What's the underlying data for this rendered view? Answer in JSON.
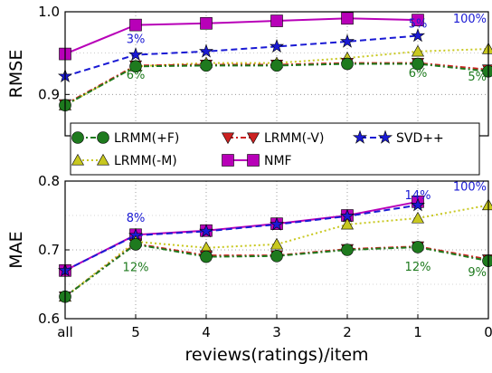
{
  "chart_data": {
    "type": "line",
    "xlabel": "reviews(ratings)/item",
    "categories": [
      "all",
      "5",
      "4",
      "3",
      "2",
      "1",
      "0"
    ],
    "grid": true,
    "legend_placement": "between panels",
    "legend_columns": [
      [
        "LRMM(+F)",
        "LRMM(-M)"
      ],
      [
        "LRMM(-V)",
        "NMF"
      ],
      [
        "SVD++"
      ]
    ],
    "series_styles": {
      "LRMM(+F)": {
        "color": "#1e7a1e",
        "marker": "circle",
        "dash": "6,3,2,3"
      },
      "LRMM(-M)": {
        "color": "#c8c820",
        "marker": "triangle-up",
        "dash": "2,3"
      },
      "LRMM(-V)": {
        "color": "#cc2222",
        "marker": "triangle-down",
        "dash": "6,3,2,3"
      },
      "NMF": {
        "color": "#b800b8",
        "marker": "square",
        "dash": ""
      },
      "SVD++": {
        "color": "#1a1ad4",
        "marker": "star",
        "dash": "7,4"
      }
    },
    "panels": [
      {
        "id": "rmse",
        "ylabel": "RMSE",
        "ylim": [
          0.85,
          1.0
        ],
        "yticks": [
          "0.9",
          "1.0"
        ],
        "ytick_values": [
          0.9,
          1.0
        ],
        "series": [
          {
            "name": "NMF",
            "values": [
              0.949,
              0.984,
              0.986,
              0.989,
              0.992,
              0.99,
              null
            ]
          },
          {
            "name": "SVD++",
            "values": [
              0.922,
              0.948,
              0.952,
              0.958,
              0.964,
              0.971,
              null
            ]
          },
          {
            "name": "LRMM(-M)",
            "values": [
              0.887,
              0.934,
              0.938,
              0.938,
              0.944,
              0.952,
              0.955
            ]
          },
          {
            "name": "LRMM(-V)",
            "values": [
              0.888,
              0.935,
              0.936,
              0.936,
              0.938,
              0.938,
              0.93
            ]
          },
          {
            "name": "LRMM(+F)",
            "values": [
              0.887,
              0.934,
              0.935,
              0.935,
              0.937,
              0.937,
              0.928
            ]
          }
        ],
        "annotations": [
          {
            "text": "3%",
            "x": "5",
            "y": 0.962,
            "color": "#1a1ad4"
          },
          {
            "text": "5%",
            "x": "1",
            "y": 0.981,
            "color": "#1a1ad4"
          },
          {
            "text": "100%",
            "x": "0",
            "y": 0.987,
            "color": "#1a1ad4"
          },
          {
            "text": "6%",
            "x": "5",
            "y": 0.919,
            "color": "#1e7a1e"
          },
          {
            "text": "6%",
            "x": "1",
            "y": 0.921,
            "color": "#1e7a1e"
          },
          {
            "text": "5%",
            "x": "0",
            "y": 0.917,
            "color": "#1e7a1e"
          }
        ]
      },
      {
        "id": "mae",
        "ylabel": "MAE",
        "ylim": [
          0.6,
          0.8
        ],
        "yticks": [
          "0.6",
          "0.7",
          "0.8"
        ],
        "ytick_values": [
          0.6,
          0.7,
          0.8
        ],
        "series": [
          {
            "name": "NMF",
            "values": [
              0.67,
              0.722,
              0.728,
              0.738,
              0.75,
              0.77,
              null
            ]
          },
          {
            "name": "SVD++",
            "values": [
              0.67,
              0.721,
              0.727,
              0.737,
              0.749,
              0.765,
              null
            ]
          },
          {
            "name": "LRMM(-M)",
            "values": [
              0.632,
              0.712,
              0.703,
              0.708,
              0.737,
              0.746,
              0.765
            ]
          },
          {
            "name": "LRMM(-V)",
            "values": [
              0.632,
              0.709,
              0.692,
              0.692,
              0.701,
              0.705,
              0.686
            ]
          },
          {
            "name": "LRMM(+F)",
            "values": [
              0.632,
              0.708,
              0.69,
              0.691,
              0.7,
              0.704,
              0.684
            ]
          }
        ],
        "annotations": [
          {
            "text": "8%",
            "x": "5",
            "y": 0.741,
            "color": "#1a1ad4"
          },
          {
            "text": "14%",
            "x": "1",
            "y": 0.774,
            "color": "#1a1ad4"
          },
          {
            "text": "100%",
            "x": "0",
            "y": 0.786,
            "color": "#1a1ad4"
          },
          {
            "text": "12%",
            "x": "5",
            "y": 0.669,
            "color": "#1e7a1e"
          },
          {
            "text": "12%",
            "x": "1",
            "y": 0.67,
            "color": "#1e7a1e"
          },
          {
            "text": "9%",
            "x": "0",
            "y": 0.662,
            "color": "#1e7a1e"
          }
        ]
      }
    ]
  }
}
